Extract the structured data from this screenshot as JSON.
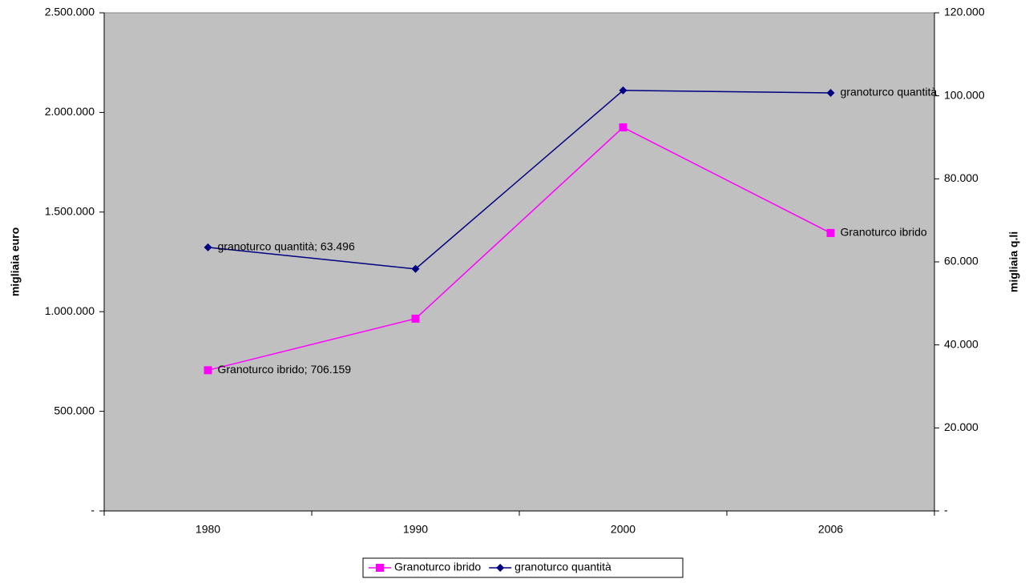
{
  "chart_data": {
    "type": "line",
    "categories": [
      "1980",
      "1990",
      "2000",
      "2006"
    ],
    "y_label": "migliaia euro",
    "y2_label": "migliaia q.li",
    "ylim": [
      0,
      2500000
    ],
    "yticks": [
      {
        "value": 0,
        "label": "-"
      },
      {
        "value": 500000,
        "label": "500.000"
      },
      {
        "value": 1000000,
        "label": "1.000.000"
      },
      {
        "value": 1500000,
        "label": "1.500.000"
      },
      {
        "value": 2000000,
        "label": "2.000.000"
      },
      {
        "value": 2500000,
        "label": "2.500.000"
      }
    ],
    "y2lim": [
      0,
      120000
    ],
    "y2ticks": [
      {
        "value": 0,
        "label": "-"
      },
      {
        "value": 20000,
        "label": "20.000"
      },
      {
        "value": 40000,
        "label": "40.000"
      },
      {
        "value": 60000,
        "label": "60.000"
      },
      {
        "value": 80000,
        "label": "80.000"
      },
      {
        "value": 100000,
        "label": "100.000"
      },
      {
        "value": 120000,
        "label": "120.000"
      }
    ],
    "plot_background": "#c0c0c0",
    "legend": "bottom",
    "series": [
      {
        "name": "Granoturco ibrido",
        "color": "#ff00ff",
        "marker": "square",
        "values": [
          706159,
          965000,
          1925000,
          1395000
        ],
        "value_labels": [
          "Granoturco ibrido; 706.159",
          null,
          null,
          "Granoturco ibrido"
        ]
      },
      {
        "name": "granoturco quantità",
        "color": "#000080",
        "marker": "diamond",
        "axis": "y2",
        "values": [
          63496,
          58300,
          101300,
          100700
        ],
        "value_labels": [
          "granoturco quantità; 63.496",
          null,
          null,
          "granoturco quantità"
        ]
      }
    ]
  }
}
